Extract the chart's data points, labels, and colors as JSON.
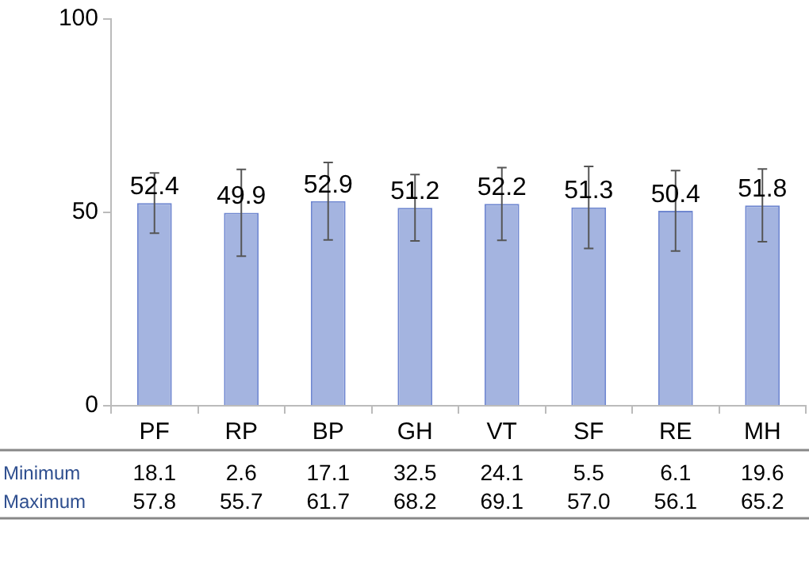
{
  "chart_data": {
    "type": "bar",
    "categories": [
      "PF",
      "RP",
      "BP",
      "GH",
      "VT",
      "SF",
      "RE",
      "MH"
    ],
    "values": [
      52.4,
      49.9,
      52.9,
      51.2,
      52.2,
      51.3,
      50.4,
      51.8
    ],
    "errors": [
      7.8,
      11.2,
      10,
      8.6,
      9.4,
      10.6,
      10.4,
      9.4
    ],
    "color": "#a4b4e0",
    "ylim": [
      0,
      100
    ],
    "yticks": [
      0,
      50,
      100
    ],
    "grid": false,
    "legend": false,
    "data_labels": true,
    "annotations": [
      "Minimum",
      "18.1",
      "2.6",
      "17.1",
      "32.5",
      "24.1",
      "5.5",
      "6.1",
      "19.6",
      "Maximum",
      "57.8",
      "55.7",
      "61.7",
      "68.2",
      "69.1",
      "57.0",
      "56.1",
      "65.2"
    ]
  }
}
